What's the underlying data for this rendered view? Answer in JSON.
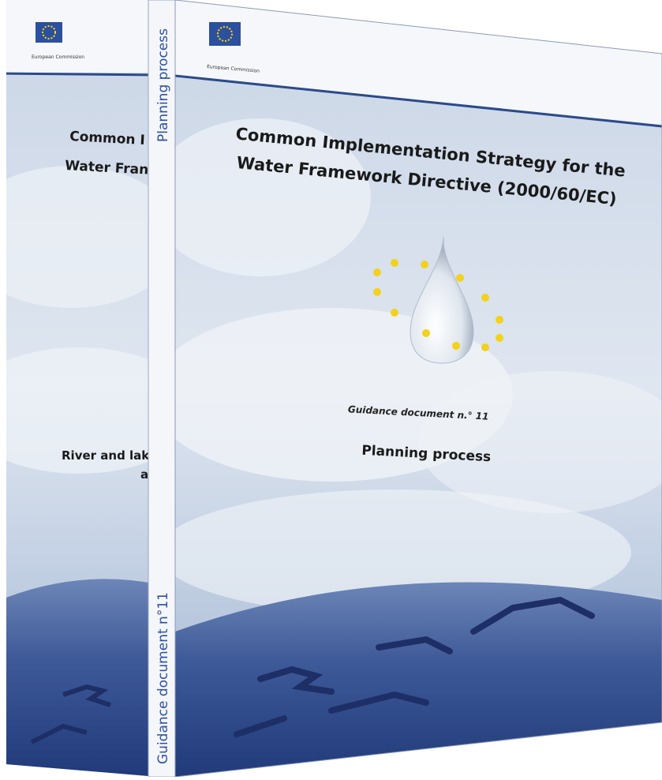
{
  "back_cover": {
    "logo_caption": "European Commission",
    "title_lines": [
      "Common I",
      "Water Fran"
    ],
    "subtitle_lines": [
      "River and lak",
      "a"
    ]
  },
  "spine": {
    "top": "Planning process",
    "bottom": "Guidance document n°11"
  },
  "front_cover": {
    "logo_caption": "European Commission",
    "title_lines": [
      "Common Implementation Strategy for the",
      "Water Framework Directive (2000/60/EC)"
    ],
    "series": "Guidance document n.° 11",
    "subtitle": "Planning process"
  }
}
